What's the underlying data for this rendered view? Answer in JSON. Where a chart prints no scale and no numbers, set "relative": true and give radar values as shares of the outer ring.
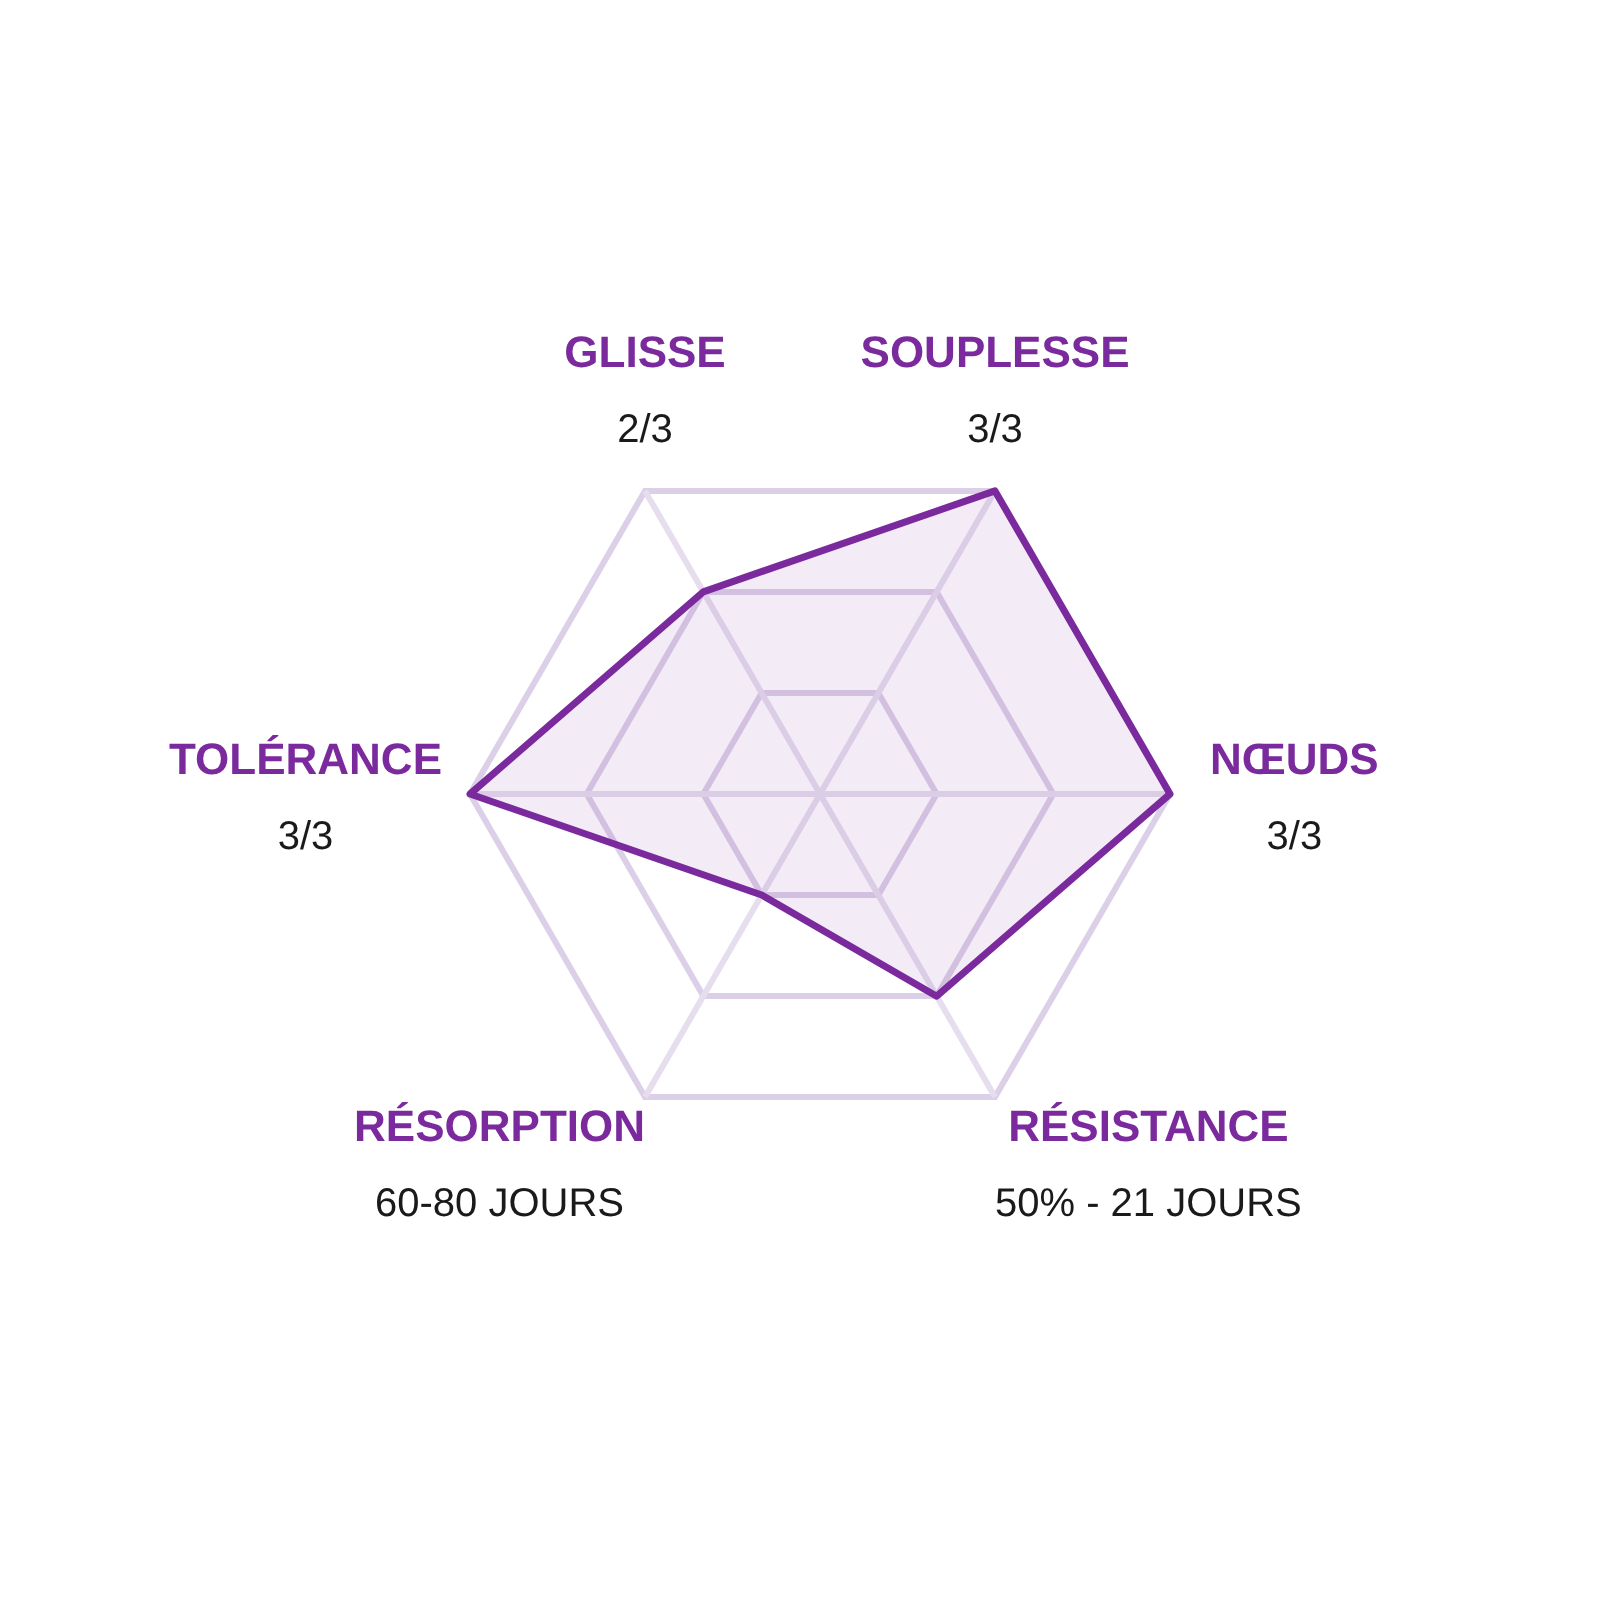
{
  "chart_data": {
    "type": "radar",
    "relative": true,
    "grid": true,
    "legend": false,
    "categories": [
      "SOUPLESSE",
      "NŒUDS",
      "RÉSISTANCE",
      "RÉSORPTION",
      "TOLÉRANCE",
      "GLISSE"
    ],
    "annotations": [
      "3/3",
      "3/3",
      "50% - 21 JOURS",
      "60-80 JOURS",
      "3/3",
      "2/3"
    ],
    "series": [
      {
        "color": "#7b2a9e",
        "values": [
          1,
          1,
          0.667,
          0.333,
          1,
          0.667
        ]
      }
    ]
  }
}
